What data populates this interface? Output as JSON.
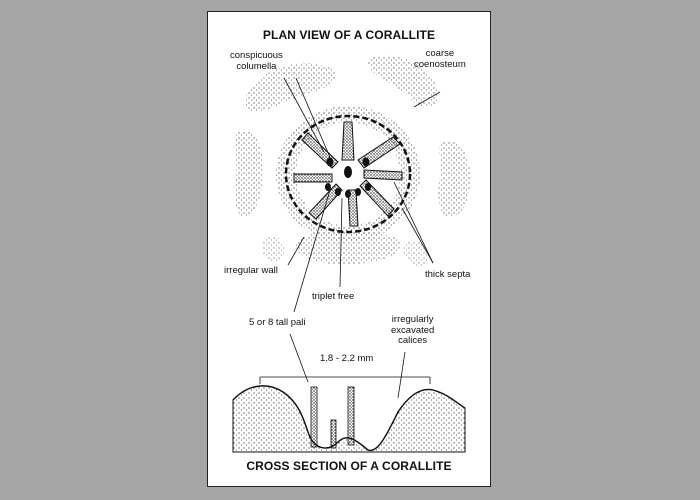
{
  "top_title": "PLAN VIEW OF A CORALLITE",
  "bottom_title": "CROSS SECTION OF A CORALLITE",
  "labels": {
    "conspicuous_columella_1": "conspicuous",
    "conspicuous_columella_2": "columella",
    "coarse_coenosteum_1": "coarse",
    "coarse_coenosteum_2": "coenosteum",
    "irregular_wall": "irregular wall",
    "thick_septa": "thick septa",
    "triplet_free": "triplet free",
    "tall_pali": "5 or 8 tall pali",
    "irregularly_1": "irregularly",
    "irregularly_2": "excavated",
    "irregularly_3": "calices",
    "dimension": "1.8 - 2.2 mm"
  }
}
